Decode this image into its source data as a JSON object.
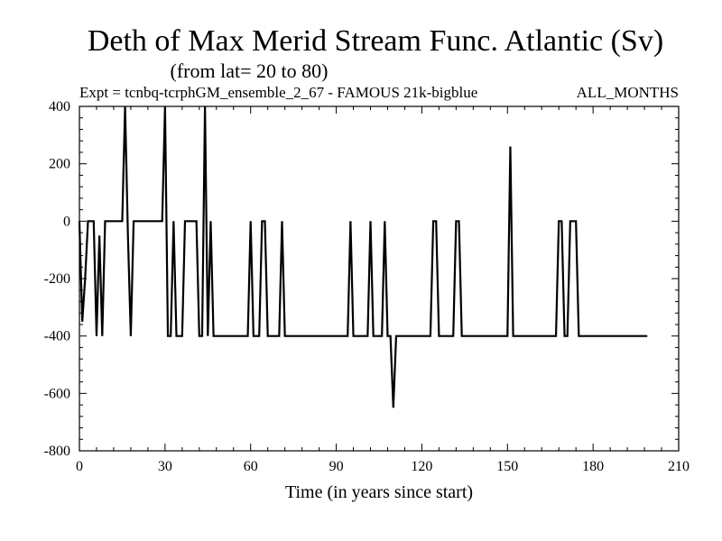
{
  "chart_data": {
    "type": "line",
    "title": "Deth of Max Merid Stream Func. Atlantic (Sv)",
    "subtitle": "(from lat= 20 to 80)",
    "experiment": "Expt = tcnbq-tcrphGM_ensemble_2_67 - FAMOUS 21k-bigblue",
    "period": "ALL_MONTHS",
    "xlabel": "Time (in years since start)",
    "ylabel": "",
    "xlim": [
      0,
      210
    ],
    "ylim": [
      -800,
      400
    ],
    "xticks": [
      0,
      30,
      60,
      90,
      120,
      150,
      180,
      210
    ],
    "yticks": [
      400,
      200,
      0,
      -200,
      -400,
      -600,
      -800
    ],
    "x_tick_labels": [
      "0",
      "30",
      "60",
      "90",
      "120",
      "150",
      "180",
      "210"
    ],
    "y_tick_labels": [
      "400",
      "200",
      "0",
      "-200",
      "-400",
      "-600",
      "-800"
    ],
    "grid": false,
    "line_color": "#000000",
    "series": [
      {
        "points": [
          [
            0,
            0
          ],
          [
            1,
            -350
          ],
          [
            2,
            -200
          ],
          [
            3,
            0
          ],
          [
            5,
            0
          ],
          [
            6,
            -400
          ],
          [
            7,
            -50
          ],
          [
            8,
            -400
          ],
          [
            9,
            0
          ],
          [
            15,
            0
          ],
          [
            16,
            400
          ],
          [
            17,
            -50
          ],
          [
            18,
            -400
          ],
          [
            19,
            0
          ],
          [
            29,
            0
          ],
          [
            30,
            400
          ],
          [
            31,
            -400
          ],
          [
            32,
            -400
          ],
          [
            33,
            0
          ],
          [
            34,
            -400
          ],
          [
            36,
            -400
          ],
          [
            37,
            0
          ],
          [
            41,
            0
          ],
          [
            42,
            -400
          ],
          [
            43,
            -400
          ],
          [
            44,
            400
          ],
          [
            45,
            -400
          ],
          [
            46,
            0
          ],
          [
            47,
            -400
          ],
          [
            59,
            -400
          ],
          [
            60,
            0
          ],
          [
            61,
            -400
          ],
          [
            63,
            -400
          ],
          [
            64,
            0
          ],
          [
            65,
            0
          ],
          [
            66,
            -400
          ],
          [
            70,
            -400
          ],
          [
            71,
            0
          ],
          [
            72,
            -400
          ],
          [
            94,
            -400
          ],
          [
            95,
            0
          ],
          [
            96,
            -400
          ],
          [
            101,
            -400
          ],
          [
            102,
            0
          ],
          [
            103,
            -400
          ],
          [
            106,
            -400
          ],
          [
            107,
            0
          ],
          [
            108,
            -400
          ],
          [
            109,
            -400
          ],
          [
            110,
            -650
          ],
          [
            111,
            -400
          ],
          [
            123,
            -400
          ],
          [
            124,
            0
          ],
          [
            125,
            0
          ],
          [
            126,
            -400
          ],
          [
            131,
            -400
          ],
          [
            132,
            0
          ],
          [
            133,
            0
          ],
          [
            134,
            -400
          ],
          [
            150,
            -400
          ],
          [
            151,
            260
          ],
          [
            152,
            -400
          ],
          [
            167,
            -400
          ],
          [
            168,
            0
          ],
          [
            169,
            0
          ],
          [
            170,
            -400
          ],
          [
            171,
            -400
          ],
          [
            172,
            0
          ],
          [
            174,
            0
          ],
          [
            175,
            -400
          ],
          [
            199,
            -400
          ]
        ]
      }
    ]
  }
}
